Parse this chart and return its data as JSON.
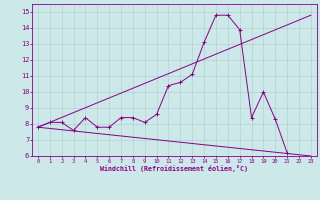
{
  "xlabel": "Windchill (Refroidissement éolien,°C)",
  "bg_color": "#cce8e8",
  "line_color": "#880088",
  "grid_color": "#aacccc",
  "xlim": [
    -0.5,
    23.5
  ],
  "ylim": [
    6,
    15.5
  ],
  "xticks": [
    0,
    1,
    2,
    3,
    4,
    5,
    6,
    7,
    8,
    9,
    10,
    11,
    12,
    13,
    14,
    15,
    16,
    17,
    18,
    19,
    20,
    21,
    22,
    23
  ],
  "yticks": [
    6,
    7,
    8,
    9,
    10,
    11,
    12,
    13,
    14,
    15
  ],
  "line1_x": [
    0,
    1,
    2,
    3,
    4,
    5,
    6,
    7,
    8,
    9,
    10,
    11,
    12,
    13,
    14,
    15,
    16,
    17,
    18,
    19,
    20,
    21
  ],
  "line1_y": [
    7.8,
    8.1,
    8.1,
    7.6,
    8.4,
    7.8,
    7.8,
    8.4,
    8.4,
    8.1,
    8.6,
    10.4,
    10.6,
    11.1,
    13.1,
    14.8,
    14.8,
    13.9,
    8.4,
    10.0,
    8.3,
    6.2
  ],
  "line2_x": [
    0,
    23
  ],
  "line2_y": [
    7.8,
    14.8
  ],
  "line3_x": [
    0,
    23
  ],
  "line3_y": [
    7.8,
    6.0
  ]
}
